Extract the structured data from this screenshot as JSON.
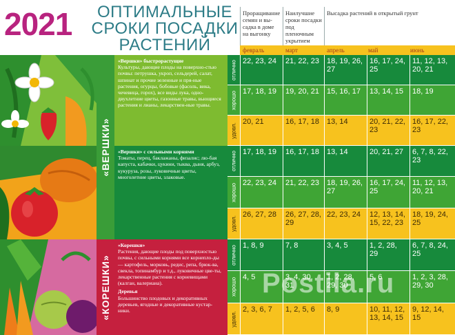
{
  "year": "2021",
  "title": [
    "ОПТИМАЛЬНЫЕ",
    "СРОКИ ПОСАДКИ",
    "РАСТЕНИЙ"
  ],
  "columns": [
    "Проращивание семян и вы-садка в доме на выгонку",
    "Наилучшие сроки посадки под пленочным укрытием",
    "Высадка растений в открытый грунт"
  ],
  "months": [
    "февраль",
    "март",
    "апрель",
    "май",
    "июнь"
  ],
  "ratings": [
    "отлично",
    "хорошо",
    "удовл."
  ],
  "sections": [
    {
      "side": "«ВЕРШКИ»",
      "groups": [
        {
          "heading": "«Вершки» быстрорастущие",
          "text": "Культуры, дающие плоды на поверхно-стью почвы: петрушка, укроп, сельдерей, салат, шпинат и прочие зеленные и пря-ные растения, огурцы, бобовые (фасоль, вика, чечевица, горох), все виды лука, одно-двухлетние цветы, газонные травы, вьющиеся растения и лианы, лекарствен-ные травы.",
          "rows": [
            [
              "22, 23, 24",
              "21, 22, 23",
              "18, 19, 26, 27",
              "16, 17, 24, 25",
              "11, 12, 13, 20, 21"
            ],
            [
              "17, 18, 19",
              "19, 20, 21",
              "15, 16, 17",
              "13, 14, 15",
              "18, 19"
            ],
            [
              "20, 21",
              "16, 17, 18",
              "13, 14",
              "20, 21, 22, 23",
              "16, 17, 22, 23"
            ]
          ]
        },
        {
          "heading": "«Вершки» с сильными корнями",
          "text": "Томаты, перец, баклажаны, физалис; лю-бая капуста, кабачки, цукини, тыква, дыня, арбуз, кукуруза, розы, луковичные цветы, многолетние цветы, злаковые.",
          "rows": [
            [
              "17, 18, 19",
              "16, 17, 18",
              "13, 14",
              "20, 21, 27",
              "6, 7, 8, 22, 23"
            ],
            [
              "22, 23, 24",
              "21, 22, 23",
              "18, 19, 26, 27",
              "16, 17, 24, 25",
              "11, 12, 13, 20, 21"
            ],
            [
              "26, 27, 28",
              "26, 27, 28, 29",
              "22, 23, 24",
              "12, 13, 14, 15, 22, 23",
              "18, 19, 24, 25"
            ]
          ]
        }
      ]
    },
    {
      "side": "«КОРЕШКИ»",
      "groups": [
        {
          "heading": "«Корешки»",
          "text": "Растения, дающие плоды под поверхностью почвы, с сильными корнями все корнепло-ды — картофель, морковь, редис, репа, брюк-ва, свекла, топинамбур и т.д., луковичные цве-ты, лекарственные растения с корневищами (калган, валериана).",
          "heading2": "Деревья",
          "text2": "Большинство плодовых и декоративных деревьев, ягодные и декоративные кустар-ники.",
          "rows": [
            [
              "1, 8, 9",
              "7, 8",
              "3, 4, 5",
              "1, 2, 28, 29",
              "6, 7, 8, 24, 25"
            ],
            [
              "4, 5",
              "3, 4, 30, 31",
              "1, 2, 28, 29, 30",
              "5, 6",
              "1, 2, 3, 28, 29, 30"
            ],
            [
              "2, 3, 6, 7",
              "1, 2, 5, 6",
              "8, 9",
              "10, 11, 12, 13, 14, 15",
              "9, 12, 14, 15"
            ]
          ]
        }
      ]
    }
  ],
  "watermark": "Postila.ru",
  "colors": {
    "magenta": "#b8237f",
    "teal": "#2d7c87",
    "green_dark": "#178a3c",
    "green_mid": "#3fa535",
    "yellow": "#f7c21e",
    "red": "#c5203e",
    "lime": "#7ebb30"
  }
}
